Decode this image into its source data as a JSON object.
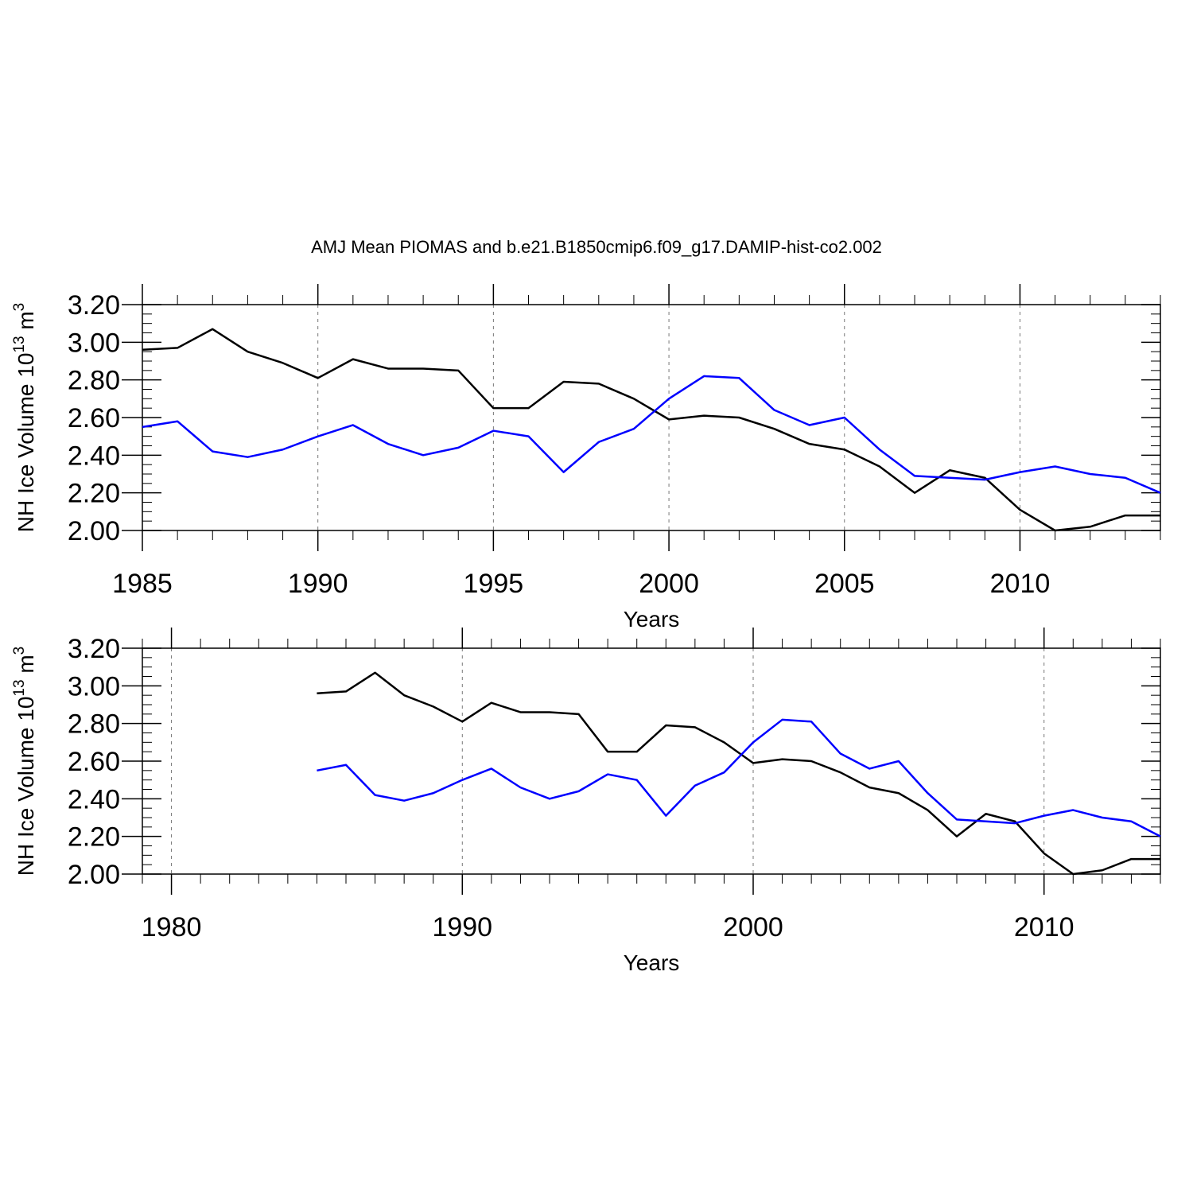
{
  "figure_title": "AMJ Mean PIOMAS and b.e21.B1850cmip6.f09_g17.DAMIP-hist-co2.002",
  "colors": {
    "observed": "#000000",
    "model": "#0000ff",
    "frame": "#000000",
    "grid": "#777777"
  },
  "chart_data": [
    {
      "type": "line",
      "title": "AMJ Mean PIOMAS and b.e21.B1850cmip6.f09_g17.DAMIP-hist-co2.002",
      "xlabel": "Years",
      "ylabel": {
        "prefix": "NH Ice Volume 10",
        "superscript_1": "13",
        "middle": " m",
        "superscript_2": "3"
      },
      "xlim": [
        1985,
        2014
      ],
      "ylim": [
        2.0,
        3.2
      ],
      "xticks": [
        1985,
        1990,
        1995,
        2000,
        2005,
        2010
      ],
      "yticks": [
        "2.00",
        "2.20",
        "2.40",
        "2.60",
        "2.80",
        "3.00",
        "3.20"
      ],
      "grid": "vertical dashed at major x ticks",
      "x": [
        1985,
        1986,
        1987,
        1988,
        1989,
        1990,
        1991,
        1992,
        1993,
        1994,
        1995,
        1996,
        1997,
        1998,
        1999,
        2000,
        2001,
        2002,
        2003,
        2004,
        2005,
        2006,
        2007,
        2008,
        2009,
        2010,
        2011,
        2012,
        2013,
        2014
      ],
      "series": [
        {
          "name": "PIOMAS",
          "color": "#000000",
          "values": [
            2.96,
            2.97,
            3.07,
            2.95,
            2.89,
            2.81,
            2.91,
            2.86,
            2.86,
            2.85,
            2.65,
            2.65,
            2.79,
            2.78,
            2.7,
            2.59,
            2.61,
            2.6,
            2.54,
            2.46,
            2.43,
            2.34,
            2.2,
            2.32,
            2.28,
            2.11,
            2.0,
            2.02,
            2.08,
            2.08
          ]
        },
        {
          "name": "b.e21.B1850cmip6.f09_g17.DAMIP-hist-co2.002",
          "color": "#0000ff",
          "values": [
            2.55,
            2.58,
            2.42,
            2.39,
            2.43,
            2.5,
            2.56,
            2.46,
            2.4,
            2.44,
            2.53,
            2.5,
            2.31,
            2.47,
            2.54,
            2.7,
            2.82,
            2.81,
            2.64,
            2.56,
            2.6,
            2.43,
            2.29,
            2.28,
            2.27,
            2.31,
            2.34,
            2.3,
            2.28,
            2.2
          ]
        }
      ]
    },
    {
      "type": "line",
      "title": "",
      "xlabel": "Years",
      "ylabel": {
        "prefix": "NH Ice Volume 10",
        "superscript_1": "13",
        "middle": " m",
        "superscript_2": "3"
      },
      "xlim": [
        1979,
        2014
      ],
      "ylim": [
        2.0,
        3.2
      ],
      "xticks": [
        1980,
        1990,
        2000,
        2010
      ],
      "yticks": [
        "2.00",
        "2.20",
        "2.40",
        "2.60",
        "2.80",
        "3.00",
        "3.20"
      ],
      "grid": "vertical dashed at major x ticks",
      "x": [
        1985,
        1986,
        1987,
        1988,
        1989,
        1990,
        1991,
        1992,
        1993,
        1994,
        1995,
        1996,
        1997,
        1998,
        1999,
        2000,
        2001,
        2002,
        2003,
        2004,
        2005,
        2006,
        2007,
        2008,
        2009,
        2010,
        2011,
        2012,
        2013,
        2014
      ],
      "series": [
        {
          "name": "PIOMAS",
          "color": "#000000",
          "values": [
            2.96,
            2.97,
            3.07,
            2.95,
            2.89,
            2.81,
            2.91,
            2.86,
            2.86,
            2.85,
            2.65,
            2.65,
            2.79,
            2.78,
            2.7,
            2.59,
            2.61,
            2.6,
            2.54,
            2.46,
            2.43,
            2.34,
            2.2,
            2.32,
            2.28,
            2.11,
            2.0,
            2.02,
            2.08,
            2.08
          ]
        },
        {
          "name": "b.e21.B1850cmip6.f09_g17.DAMIP-hist-co2.002",
          "color": "#0000ff",
          "values": [
            2.55,
            2.58,
            2.42,
            2.39,
            2.43,
            2.5,
            2.56,
            2.46,
            2.4,
            2.44,
            2.53,
            2.5,
            2.31,
            2.47,
            2.54,
            2.7,
            2.82,
            2.81,
            2.64,
            2.56,
            2.6,
            2.43,
            2.29,
            2.28,
            2.27,
            2.31,
            2.34,
            2.3,
            2.28,
            2.2
          ]
        }
      ]
    }
  ]
}
